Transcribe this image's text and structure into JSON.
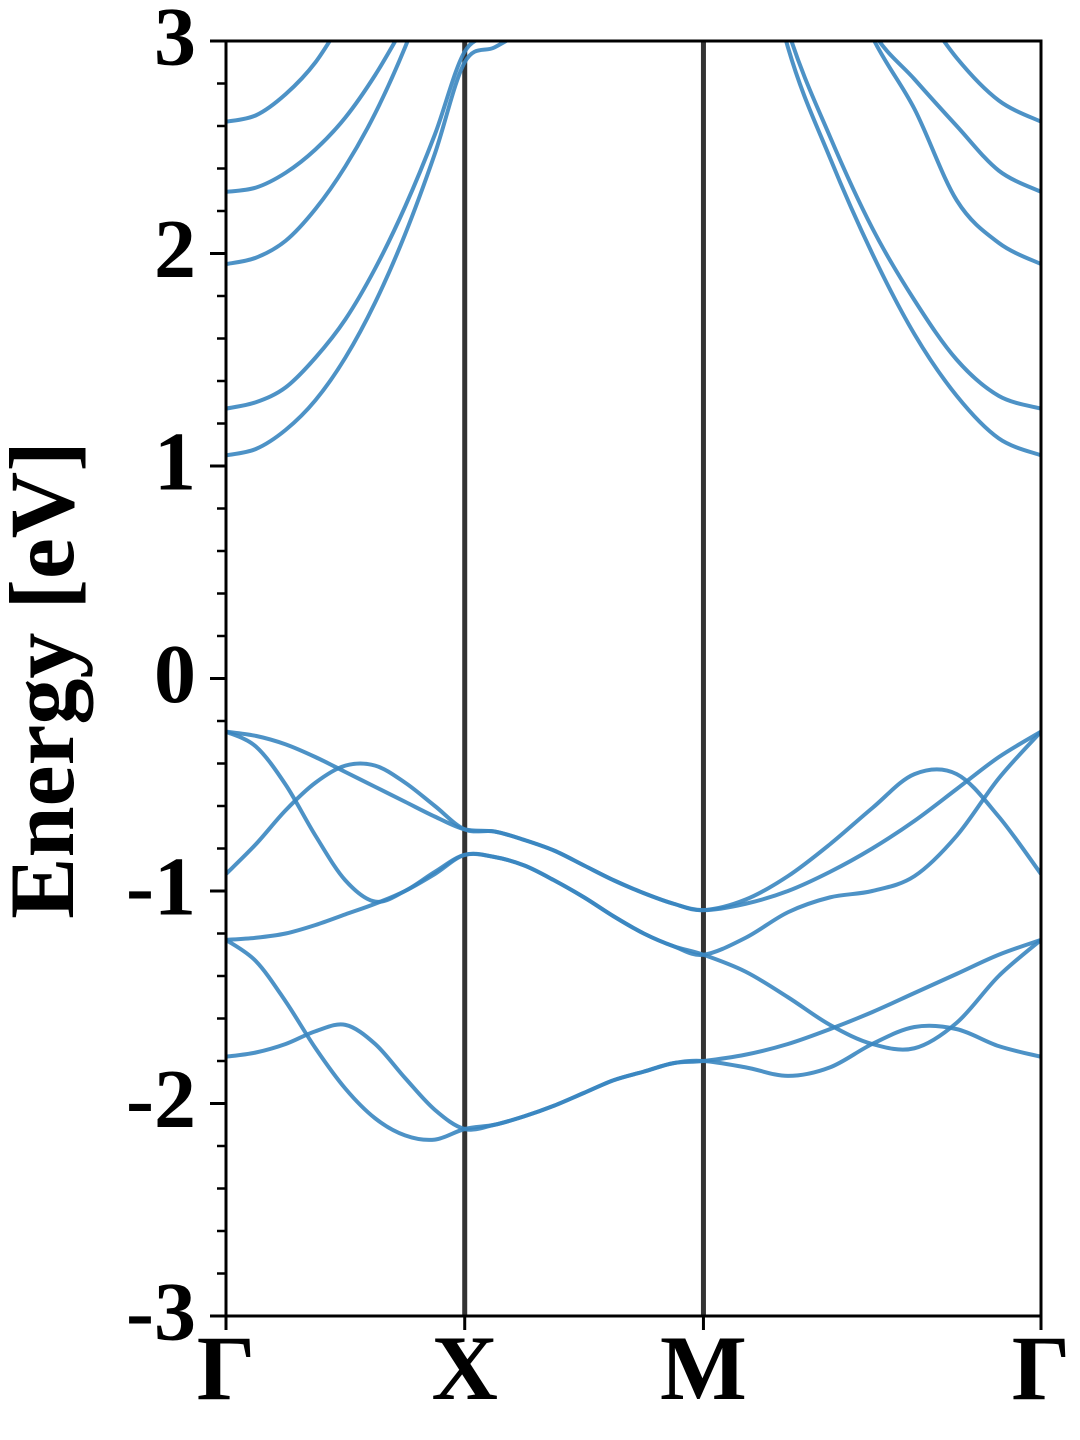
{
  "chart_data": {
    "type": "line",
    "ylabel": "Energy [eV]",
    "x": [
      0,
      0.125,
      0.25,
      0.375,
      0.5,
      0.625,
      0.75,
      0.875,
      1,
      1.125,
      1.25,
      1.375,
      1.5,
      1.625,
      1.75,
      1.875,
      2,
      2.177,
      2.354,
      2.53,
      2.707,
      2.884,
      3.061,
      3.237,
      3.414
    ],
    "xlim": [
      0,
      3.414
    ],
    "xticks": [
      {
        "value": 0,
        "label": "Γ"
      },
      {
        "value": 1,
        "label": "X"
      },
      {
        "value": 2,
        "label": "M"
      },
      {
        "value": 3.414,
        "label": "Γ"
      }
    ],
    "ylim": [
      -3,
      3
    ],
    "yticks": [
      -3,
      -2,
      -1,
      0,
      1,
      2,
      3
    ],
    "yminorticks": [
      -2.8,
      -2.6,
      -2.4,
      -2.2,
      -1.8,
      -1.6,
      -1.4,
      -1.2,
      -0.8,
      -0.6,
      -0.4,
      -0.2,
      0.2,
      0.4,
      0.6,
      0.8,
      1.2,
      1.4,
      1.6,
      1.8,
      2.2,
      2.4,
      2.6,
      2.8
    ],
    "grid": true,
    "color": "#3a86c0",
    "series": [
      {
        "values": [
          1.05,
          1.08,
          1.17,
          1.31,
          1.51,
          1.77,
          2.09,
          2.47,
          2.9,
          2.97,
          3.05,
          null,
          null,
          null,
          null,
          null,
          null,
          3.8,
          2.97,
          2.45,
          2.0,
          1.62,
          1.33,
          1.13,
          1.05
        ]
      },
      {
        "values": [
          1.27,
          1.3,
          1.37,
          1.51,
          1.69,
          1.93,
          2.22,
          2.56,
          2.95,
          3.03,
          3.12,
          null,
          null,
          null,
          null,
          null,
          null,
          3.8,
          3.05,
          2.55,
          2.12,
          1.78,
          1.5,
          1.33,
          1.27
        ]
      },
      {
        "values": [
          1.95,
          1.98,
          2.06,
          2.21,
          2.41,
          2.66,
          2.97,
          3.34,
          null,
          null,
          null,
          null,
          null,
          null,
          null,
          null,
          null,
          null,
          null,
          3.5,
          3.02,
          2.68,
          2.25,
          2.05,
          1.95
        ]
      },
      {
        "values": [
          2.29,
          2.31,
          2.38,
          2.49,
          2.64,
          2.84,
          3.08,
          null,
          null,
          null,
          null,
          null,
          null,
          null,
          null,
          null,
          null,
          null,
          null,
          3.5,
          3.05,
          2.82,
          2.6,
          2.39,
          2.29
        ]
      },
      {
        "values": [
          2.62,
          2.65,
          2.75,
          2.9,
          3.12,
          null,
          null,
          null,
          null,
          null,
          null,
          null,
          null,
          null,
          null,
          null,
          null,
          null,
          null,
          null,
          null,
          3.2,
          2.92,
          2.72,
          2.62
        ]
      },
      {
        "values": [
          -0.25,
          -0.27,
          -0.31,
          -0.37,
          -0.44,
          -0.51,
          -0.58,
          -0.65,
          -0.71,
          -0.72,
          -0.76,
          -0.81,
          -0.88,
          -0.95,
          -1.01,
          -1.06,
          -1.09,
          -1.06,
          -1.0,
          -0.91,
          -0.8,
          -0.67,
          -0.52,
          -0.37,
          -0.25
        ]
      },
      {
        "values": [
          -0.25,
          -0.32,
          -0.5,
          -0.74,
          -0.95,
          -1.05,
          -1.0,
          -0.91,
          -0.83,
          -0.84,
          -0.88,
          -0.95,
          -1.03,
          -1.12,
          -1.2,
          -1.26,
          -1.3,
          -1.22,
          -1.1,
          -1.03,
          -1.0,
          -0.93,
          -0.74,
          -0.47,
          -0.25
        ]
      },
      {
        "values": [
          -0.92,
          -0.78,
          -0.62,
          -0.49,
          -0.41,
          -0.41,
          -0.49,
          -0.6,
          -0.71,
          -0.72,
          -0.76,
          -0.81,
          -0.88,
          -0.95,
          -1.01,
          -1.06,
          -1.09,
          -1.04,
          -0.93,
          -0.78,
          -0.61,
          -0.45,
          -0.45,
          -0.65,
          -0.92
        ]
      },
      {
        "values": [
          -1.23,
          -1.22,
          -1.2,
          -1.16,
          -1.11,
          -1.06,
          -1.0,
          -0.92,
          -0.83,
          -0.84,
          -0.88,
          -0.95,
          -1.03,
          -1.12,
          -1.2,
          -1.26,
          -1.3,
          -1.38,
          -1.5,
          -1.63,
          -1.72,
          -1.74,
          -1.62,
          -1.4,
          -1.23
        ]
      },
      {
        "values": [
          -1.23,
          -1.33,
          -1.52,
          -1.74,
          -1.93,
          -2.07,
          -2.15,
          -2.17,
          -2.12,
          -2.1,
          -2.06,
          -2.01,
          -1.95,
          -1.89,
          -1.85,
          -1.81,
          -1.8,
          -1.77,
          -1.72,
          -1.65,
          -1.57,
          -1.48,
          -1.39,
          -1.3,
          -1.23
        ]
      },
      {
        "values": [
          -1.78,
          -1.76,
          -1.72,
          -1.66,
          -1.63,
          -1.72,
          -1.88,
          -2.03,
          -2.12,
          -2.1,
          -2.06,
          -2.01,
          -1.95,
          -1.89,
          -1.85,
          -1.81,
          -1.8,
          -1.83,
          -1.87,
          -1.83,
          -1.72,
          -1.64,
          -1.65,
          -1.73,
          -1.78
        ]
      }
    ]
  }
}
